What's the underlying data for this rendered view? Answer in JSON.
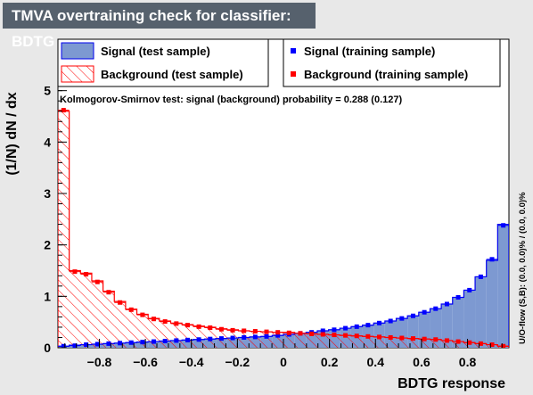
{
  "title": "TMVA overtraining check for classifier: BDTG",
  "colors": {
    "signal_fill": "#7d99d1",
    "signal_line": "#0000ee",
    "background_hatch": "#ff0000",
    "signal_marker": "#0000ff",
    "background_marker": "#ff0000"
  },
  "legend": {
    "signal_test": "Signal (test sample)",
    "background_test": "Background (test sample)",
    "signal_train": "Signal (training sample)",
    "background_train": "Background (training sample)"
  },
  "ks_text": "Kolmogorov-Smirnov test: signal (background) probability = 0.288 (0.127)",
  "side_text": "U/O-flow (S,B): (0.0, 0.0)% / (0.0, 0.0)%",
  "chart_data": {
    "type": "bar",
    "xlabel": "BDTG response",
    "ylabel": "(1/N) dN / dx",
    "xlim": [
      -0.98,
      0.98
    ],
    "ylim": [
      0,
      6
    ],
    "x_ticks": [
      -0.8,
      -0.6,
      -0.4,
      -0.2,
      0,
      0.2,
      0.4,
      0.6,
      0.8
    ],
    "x_tick_labels": [
      "−0.8",
      "−0.6",
      "−0.4",
      "−0.2",
      "0",
      "0.2",
      "0.4",
      "0.6",
      "0.8"
    ],
    "y_ticks": [
      0,
      1,
      2,
      3,
      4,
      5
    ],
    "y_tick_labels": [
      "0",
      "1",
      "2",
      "3",
      "4",
      "5"
    ],
    "bins": 40,
    "series": [
      {
        "name": "Signal (test sample)",
        "style": "filled-histogram",
        "values": [
          0.03,
          0.05,
          0.06,
          0.07,
          0.08,
          0.09,
          0.1,
          0.11,
          0.12,
          0.13,
          0.14,
          0.15,
          0.16,
          0.17,
          0.18,
          0.19,
          0.2,
          0.21,
          0.22,
          0.24,
          0.26,
          0.28,
          0.3,
          0.33,
          0.35,
          0.38,
          0.41,
          0.44,
          0.48,
          0.52,
          0.57,
          0.62,
          0.69,
          0.76,
          0.85,
          0.98,
          1.12,
          1.38,
          1.7,
          2.4
        ]
      },
      {
        "name": "Background (test sample)",
        "style": "hatched-histogram",
        "values": [
          4.6,
          1.5,
          1.45,
          1.3,
          1.1,
          0.9,
          0.75,
          0.65,
          0.57,
          0.52,
          0.48,
          0.45,
          0.42,
          0.4,
          0.37,
          0.35,
          0.33,
          0.32,
          0.31,
          0.3,
          0.3,
          0.28,
          0.27,
          0.26,
          0.25,
          0.24,
          0.23,
          0.22,
          0.21,
          0.2,
          0.19,
          0.18,
          0.17,
          0.16,
          0.14,
          0.12,
          0.1,
          0.08,
          0.06,
          0.03
        ]
      },
      {
        "name": "Signal (training sample)",
        "style": "markers",
        "values": [
          0.03,
          0.04,
          0.06,
          0.07,
          0.08,
          0.09,
          0.1,
          0.11,
          0.12,
          0.13,
          0.14,
          0.15,
          0.16,
          0.17,
          0.18,
          0.19,
          0.2,
          0.21,
          0.22,
          0.24,
          0.26,
          0.28,
          0.3,
          0.33,
          0.35,
          0.38,
          0.41,
          0.44,
          0.48,
          0.52,
          0.57,
          0.62,
          0.69,
          0.76,
          0.85,
          0.98,
          1.12,
          1.38,
          1.72,
          2.38
        ]
      },
      {
        "name": "Background (training sample)",
        "style": "markers",
        "values": [
          4.62,
          1.48,
          1.43,
          1.28,
          1.08,
          0.88,
          0.74,
          0.64,
          0.56,
          0.51,
          0.47,
          0.44,
          0.41,
          0.39,
          0.36,
          0.34,
          0.33,
          0.32,
          0.31,
          0.3,
          0.29,
          0.28,
          0.27,
          0.26,
          0.25,
          0.24,
          0.23,
          0.22,
          0.21,
          0.2,
          0.19,
          0.18,
          0.17,
          0.16,
          0.14,
          0.12,
          0.1,
          0.08,
          0.06,
          0.03
        ]
      }
    ]
  }
}
